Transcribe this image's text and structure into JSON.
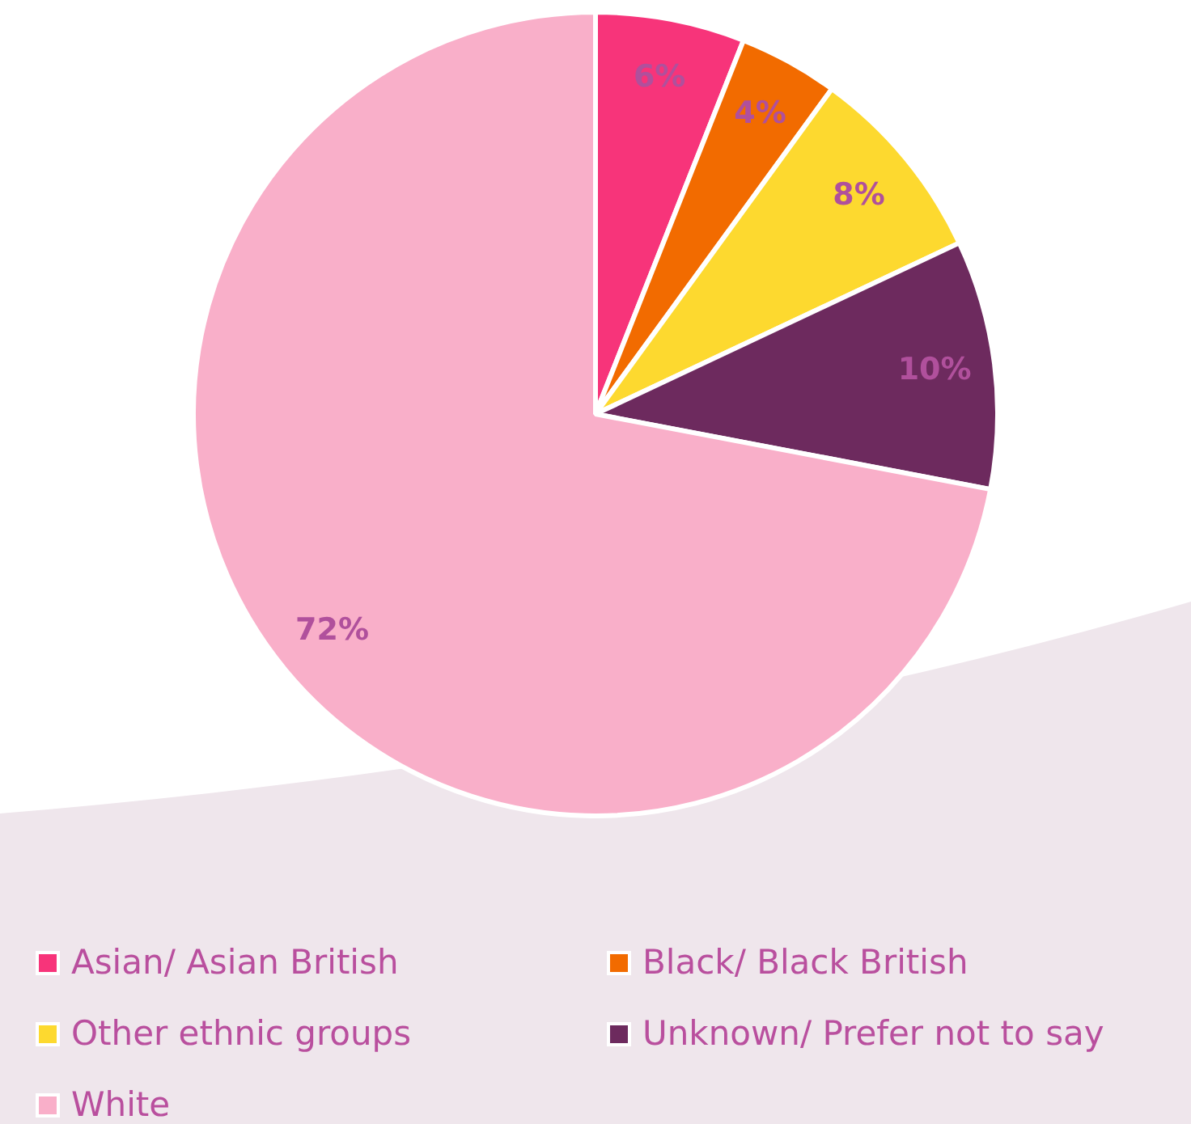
{
  "chart_data": {
    "type": "pie",
    "categories": [
      "Asian/ Asian British",
      "Black/ Black British",
      "Other ethnic groups",
      "Unknown/ Prefer not to say",
      "White"
    ],
    "values": [
      6,
      4,
      8,
      10,
      72
    ],
    "colors": [
      "#f7347a",
      "#f26b00",
      "#fdd92f",
      "#6d2a5e",
      "#f9afc9"
    ],
    "value_labels": [
      "6%",
      "4%",
      "8%",
      "10%",
      "72%"
    ],
    "legend": "bottom"
  }
}
